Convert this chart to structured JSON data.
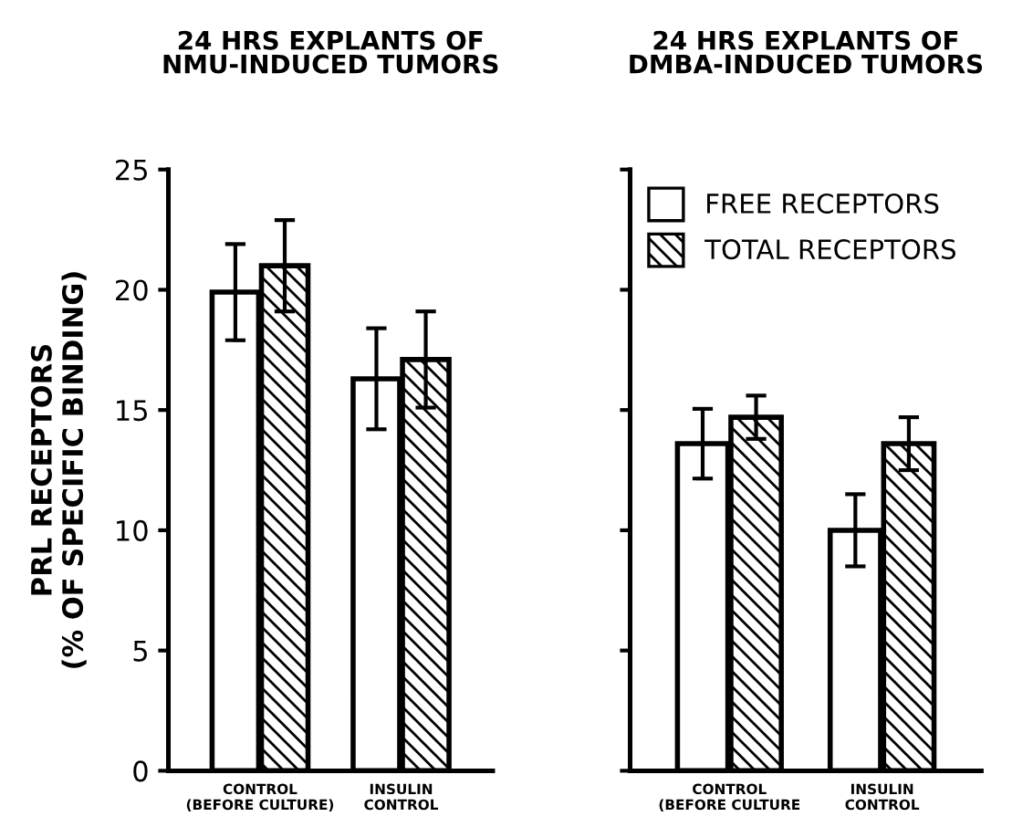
{
  "chart_data": [
    {
      "type": "bar",
      "title": "24 HRS EXPLANTS OF\nNMU-INDUCED TUMORS",
      "ylabel": "PRL RECEPTORS\n(% OF SPECIFIC BINDING)",
      "categories": [
        "CONTROL\n(BEFORE CULTURE)",
        "INSULIN\nCONTROL"
      ],
      "series": [
        {
          "color": "#ffffff",
          "values": [
            19.9,
            16.3
          ],
          "errors": [
            2.0,
            2.1
          ]
        },
        {
          "color": "#000000",
          "values": [
            21.0,
            17.1
          ],
          "errors": [
            1.9,
            2.0
          ]
        }
      ],
      "ylim": [
        0,
        25
      ],
      "yticks": [
        0,
        5,
        10,
        15,
        20,
        25
      ],
      "grid": false,
      "legend": false
    },
    {
      "type": "bar",
      "title": "24 HRS EXPLANTS OF\nDMBA-INDUCED TUMORS",
      "categories": [
        "CONTROL\n(BEFORE CULTURE",
        "INSULIN\nCONTROL"
      ],
      "series": [
        {
          "name": "FREE RECEPTORS",
          "color": "#ffffff",
          "values": [
            13.6,
            10.0
          ],
          "errors": [
            1.45,
            1.5
          ]
        },
        {
          "name": "TOTAL RECEPTORS",
          "color": "#000000",
          "values": [
            14.7,
            13.6
          ],
          "errors": [
            0.9,
            1.1
          ]
        }
      ],
      "ylim": [
        0,
        25
      ],
      "yticks": [
        0,
        5,
        10,
        15,
        20,
        25
      ],
      "tick_labels": "x",
      "grid": false,
      "legend": "top left"
    }
  ]
}
